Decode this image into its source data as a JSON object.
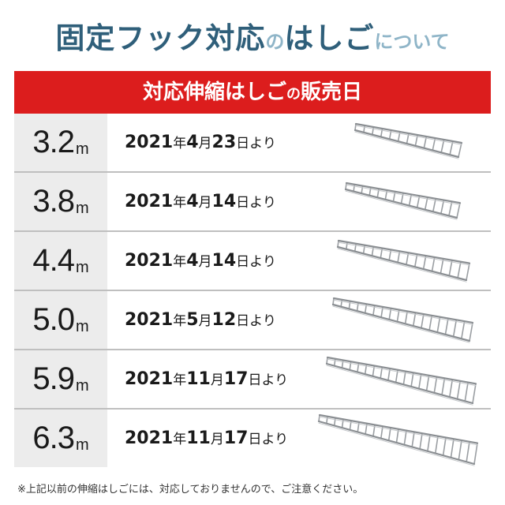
{
  "title": {
    "part1": "固定フック対応",
    "part2": "の",
    "part3": "はしご",
    "part4": "について"
  },
  "header": {
    "part1": "対応伸縮はしご",
    "part2": "の",
    "part3": "販売日"
  },
  "rows": [
    {
      "length": "3.2",
      "unit": "m",
      "year": "2021",
      "month": "4",
      "day": "23",
      "rungs": 12
    },
    {
      "length": "3.8",
      "unit": "m",
      "year": "2021",
      "month": "4",
      "day": "14",
      "rungs": 14
    },
    {
      "length": "4.4",
      "unit": "m",
      "year": "2021",
      "month": "4",
      "day": "14",
      "rungs": 15
    },
    {
      "length": "5.0",
      "unit": "m",
      "year": "2021",
      "month": "5",
      "day": "12",
      "rungs": 17
    },
    {
      "length": "5.9",
      "unit": "m",
      "year": "2021",
      "month": "11",
      "day": "17",
      "rungs": 19
    },
    {
      "length": "6.3",
      "unit": "m",
      "year": "2021",
      "month": "11",
      "day": "17",
      "rungs": 20
    }
  ],
  "date_labels": {
    "year_suffix": "年",
    "month_suffix": "月",
    "day_suffix": "日より"
  },
  "footnote": "※上記以前の伸縮はしごには、対応しておりませんので、ご注意ください。"
}
